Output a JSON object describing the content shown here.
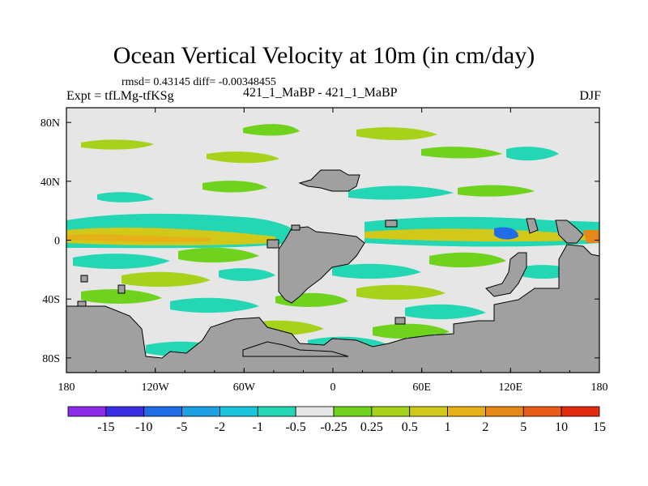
{
  "chart_data": {
    "type": "heatmap",
    "title": "Ocean Vertical Velocity at 10m (in cm/day)",
    "stats": "rmsd= 0.43145 diff= -0.00348455",
    "left_label": "Expt = tfLMg-tfKSg",
    "center_label": "421_1_MaBP - 421_1_MaBP",
    "right_label": "DJF",
    "x_axis": {
      "range": [
        -180,
        180
      ],
      "ticks": [
        {
          "value": -180,
          "label": "180"
        },
        {
          "value": -120,
          "label": "120W"
        },
        {
          "value": -60,
          "label": "60W"
        },
        {
          "value": 0,
          "label": "0"
        },
        {
          "value": 60,
          "label": "60E"
        },
        {
          "value": 120,
          "label": "120E"
        },
        {
          "value": 180,
          "label": "180"
        }
      ]
    },
    "y_axis": {
      "range": [
        -90,
        90
      ],
      "ticks": [
        {
          "value": 80,
          "label": "80N"
        },
        {
          "value": 40,
          "label": "40N"
        },
        {
          "value": 0,
          "label": "0"
        },
        {
          "value": -40,
          "label": "40S"
        },
        {
          "value": -80,
          "label": "80S"
        }
      ]
    },
    "colorbar": {
      "labels": [
        "-15",
        "-10",
        "-5",
        "-2",
        "-1",
        "-0.5",
        "-0.25",
        "0.25",
        "0.5",
        "1",
        "2",
        "5",
        "10",
        "15"
      ],
      "colors": [
        "#8c2be8",
        "#3b2ee6",
        "#1f6ee8",
        "#1ba0e6",
        "#19c4dc",
        "#23d6b4",
        "#e6e6e6",
        "#6fd21c",
        "#a6d21c",
        "#d2c81a",
        "#e6b018",
        "#e68818",
        "#e85c18",
        "#e22a10"
      ]
    },
    "land_color": "#a0a0a0",
    "missing_color": "#e6e6e6"
  }
}
